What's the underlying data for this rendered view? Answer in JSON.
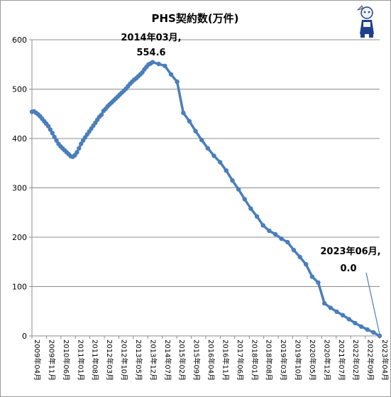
{
  "chart_data": {
    "type": "line",
    "title": "PHS契約数(万件)",
    "ylim": [
      0,
      600
    ],
    "y_ticks": [
      "0",
      "100",
      "200",
      "300",
      "400",
      "500",
      "600"
    ],
    "grid": true,
    "legend": "none",
    "line_color": "#4a7ebb",
    "x_tick_labels": [
      "2009年04月",
      "2009年11月",
      "2010年06月",
      "2011年01月",
      "2011年08月",
      "2012年03月",
      "2012年10月",
      "2013年05月",
      "2013年12月",
      "2014年07月",
      "2015年02月",
      "2015年09月",
      "2016年04月",
      "2016年11月",
      "2017年06月",
      "2018年01月",
      "2018年08月",
      "2019年03月",
      "2019年10月",
      "2020年05月",
      "2020年12月",
      "2021年07月",
      "2022年02月",
      "2022年09月",
      "2023年04月"
    ],
    "series": [
      {
        "x": [
          "2009-04",
          "2009-05",
          "2009-06",
          "2009-07",
          "2009-08",
          "2009-09",
          "2009-10",
          "2009-11",
          "2009-12",
          "2010-01",
          "2010-02",
          "2010-03",
          "2010-04",
          "2010-05",
          "2010-06",
          "2010-07",
          "2010-08",
          "2010-09",
          "2010-10",
          "2010-11",
          "2010-12",
          "2011-01",
          "2011-02",
          "2011-03",
          "2011-04",
          "2011-05",
          "2011-06",
          "2011-07",
          "2011-08",
          "2011-09",
          "2011-10",
          "2011-11",
          "2011-12",
          "2012-01",
          "2012-02",
          "2012-03",
          "2012-04",
          "2012-05",
          "2012-06",
          "2012-07",
          "2012-08",
          "2012-09",
          "2012-10",
          "2012-11",
          "2012-12",
          "2013-01",
          "2013-02",
          "2013-03",
          "2013-04",
          "2013-05",
          "2013-06",
          "2013-07",
          "2013-08",
          "2013-09",
          "2013-10",
          "2013-11",
          "2013-12",
          "2014-01",
          "2014-02",
          "2014-03",
          "2014-06",
          "2014-09",
          "2014-12",
          "2015-03",
          "2015-06",
          "2015-09",
          "2015-12",
          "2016-03",
          "2016-06",
          "2016-09",
          "2016-12",
          "2017-03",
          "2017-06",
          "2017-09",
          "2017-12",
          "2018-03",
          "2018-06",
          "2018-09",
          "2018-12",
          "2019-03",
          "2019-06",
          "2019-09",
          "2019-12",
          "2020-03",
          "2020-06",
          "2020-09",
          "2020-12",
          "2021-03",
          "2021-06",
          "2021-09",
          "2021-12",
          "2022-03",
          "2022-06",
          "2022-09",
          "2022-12",
          "2023-03",
          "2023-06"
        ],
        "y": [
          454,
          455,
          452,
          449,
          445,
          440,
          435,
          430,
          425,
          418,
          411,
          403,
          396,
          389,
          384,
          380,
          376,
          372,
          368,
          364,
          363,
          366,
          372,
          380,
          389,
          396,
          402,
          408,
          414,
          420,
          426,
          432,
          438,
          444,
          448,
          456,
          460,
          465,
          469,
          473,
          477,
          481,
          485,
          489,
          493,
          497,
          501,
          506,
          511,
          515,
          519,
          522,
          526,
          530,
          534,
          540,
          545,
          550,
          552,
          554.6,
          551,
          547,
          530,
          515,
          452,
          435,
          415,
          397,
          380,
          365,
          352,
          335,
          315,
          297,
          277,
          258,
          242,
          224,
          213,
          206,
          197,
          190,
          174,
          160,
          145,
          120,
          108,
          66,
          57,
          49,
          42,
          34,
          26,
          19,
          13,
          7,
          0
        ]
      }
    ],
    "annotations": [
      {
        "lines": [
          "2014年03月,",
          "554.6"
        ],
        "x": "2014-03",
        "y": 554.6
      },
      {
        "lines": [
          "2023年06月,",
          "0.0"
        ],
        "x": "2023-06",
        "y": 0
      }
    ]
  },
  "logo": {
    "name": "mascot-logo",
    "colors": [
      "#1f3f8f",
      "#f2f2f2",
      "#d9b38c"
    ]
  }
}
